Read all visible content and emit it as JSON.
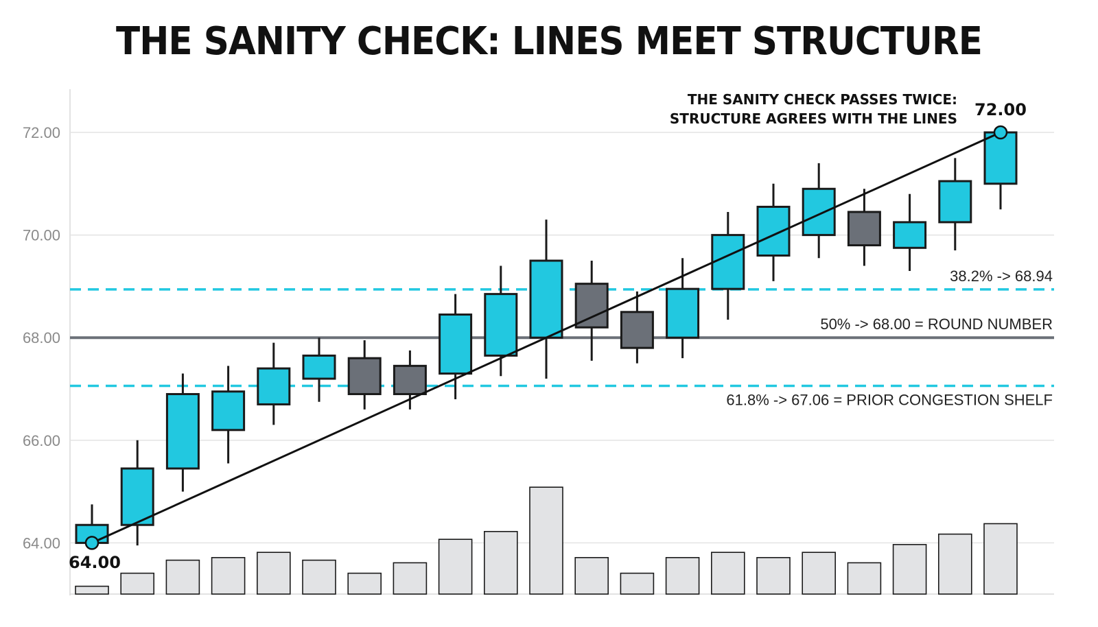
{
  "chart_data": {
    "type": "candlestick",
    "title": "THE SANITY CHECK: LINES MEET STRUCTURE",
    "y_axis": {
      "range": [
        62.8,
        72.9
      ],
      "ticks": [
        64,
        66,
        68,
        70,
        72
      ],
      "tick_labels": [
        "64.00",
        "66.00",
        "68.00",
        "70.00",
        "72.00"
      ],
      "grid": true
    },
    "candles": [
      {
        "open": 64.0,
        "high": 64.75,
        "low": 63.95,
        "close": 64.35,
        "volume": 1.5,
        "direction": "up"
      },
      {
        "open": 64.35,
        "high": 66.0,
        "low": 63.95,
        "close": 65.45,
        "volume": 4.0,
        "direction": "up"
      },
      {
        "open": 65.45,
        "high": 67.3,
        "low": 65.0,
        "close": 66.9,
        "volume": 6.5,
        "direction": "up"
      },
      {
        "open": 66.2,
        "high": 67.45,
        "low": 65.55,
        "close": 66.95,
        "volume": 7.0,
        "direction": "up"
      },
      {
        "open": 66.7,
        "high": 67.9,
        "low": 66.3,
        "close": 67.4,
        "volume": 8.0,
        "direction": "up"
      },
      {
        "open": 67.2,
        "high": 68.0,
        "low": 66.75,
        "close": 67.65,
        "volume": 6.5,
        "direction": "up"
      },
      {
        "open": 67.6,
        "high": 67.95,
        "low": 66.6,
        "close": 66.9,
        "volume": 4.0,
        "direction": "down"
      },
      {
        "open": 67.45,
        "high": 67.75,
        "low": 66.6,
        "close": 66.9,
        "volume": 6.0,
        "direction": "down"
      },
      {
        "open": 67.3,
        "high": 68.85,
        "low": 66.8,
        "close": 68.45,
        "volume": 10.5,
        "direction": "up"
      },
      {
        "open": 67.65,
        "high": 69.4,
        "low": 67.25,
        "close": 68.85,
        "volume": 12.0,
        "direction": "up"
      },
      {
        "open": 68.0,
        "high": 70.3,
        "low": 67.2,
        "close": 69.5,
        "volume": 20.5,
        "direction": "up"
      },
      {
        "open": 69.05,
        "high": 69.5,
        "low": 67.55,
        "close": 68.2,
        "volume": 7.0,
        "direction": "down"
      },
      {
        "open": 68.5,
        "high": 68.9,
        "low": 67.5,
        "close": 67.8,
        "volume": 4.0,
        "direction": "down"
      },
      {
        "open": 68.0,
        "high": 69.55,
        "low": 67.6,
        "close": 68.95,
        "volume": 7.0,
        "direction": "up"
      },
      {
        "open": 68.95,
        "high": 70.45,
        "low": 68.35,
        "close": 70.0,
        "volume": 8.0,
        "direction": "up"
      },
      {
        "open": 69.6,
        "high": 71.0,
        "low": 69.1,
        "close": 70.55,
        "volume": 7.0,
        "direction": "up"
      },
      {
        "open": 70.0,
        "high": 71.4,
        "low": 69.55,
        "close": 70.9,
        "volume": 8.0,
        "direction": "up"
      },
      {
        "open": 70.45,
        "high": 70.9,
        "low": 69.4,
        "close": 69.8,
        "volume": 6.0,
        "direction": "down"
      },
      {
        "open": 69.75,
        "high": 70.8,
        "low": 69.3,
        "close": 70.25,
        "volume": 9.5,
        "direction": "up"
      },
      {
        "open": 70.25,
        "high": 71.5,
        "low": 69.7,
        "close": 71.05,
        "volume": 11.5,
        "direction": "up"
      },
      {
        "open": 71.0,
        "high": 72.0,
        "low": 70.5,
        "close": 72.0,
        "volume": 13.5,
        "direction": "up"
      }
    ],
    "trendline": {
      "from": {
        "index": 0,
        "value": 64.0
      },
      "to": {
        "index": 20,
        "value": 72.0
      }
    },
    "endpoint_labels": {
      "start": "64.00",
      "end": "72.00"
    },
    "levels": [
      {
        "value": 68.94,
        "label": "38.2% -> 68.94",
        "style": "dashed",
        "color": "#22c8e0"
      },
      {
        "value": 68.0,
        "label": "50% -> 68.00 = ROUND NUMBER",
        "style": "solid",
        "color": "#6b7078"
      },
      {
        "value": 67.06,
        "label": "61.8% -> 67.06 = PRIOR CONGESTION SHELF",
        "style": "dashed",
        "color": "#22c8e0"
      }
    ],
    "annotation": {
      "lines": [
        "THE SANITY CHECK PASSES TWICE:",
        "STRUCTURE AGREES WITH THE LINES"
      ]
    },
    "colors": {
      "up": "#22c8e0",
      "down": "#6b7078",
      "volume": "#e2e3e5",
      "outline": "#1a1a1a",
      "grid": "#e3e3e3"
    }
  }
}
